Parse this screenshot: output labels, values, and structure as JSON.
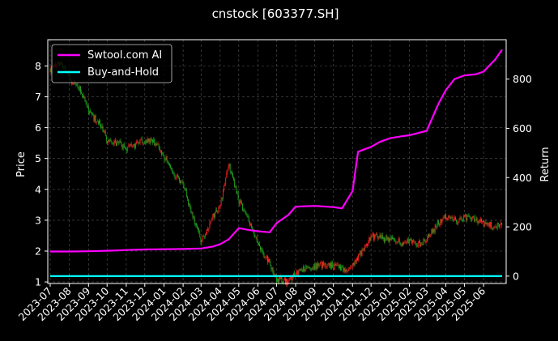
{
  "chart_data": {
    "type": "line",
    "title": "cnstock [603377.SH]",
    "ylabel_left": "Price",
    "ylabel_right": "Return",
    "left_ylim": [
      0.95,
      8.85
    ],
    "right_ylim": [
      -30,
      960
    ],
    "left_ticks": [
      "1",
      "2",
      "3",
      "4",
      "5",
      "6",
      "7",
      "8"
    ],
    "right_ticks": [
      "0",
      "200",
      "400",
      "600",
      "800"
    ],
    "x_ticks": [
      "2023-07",
      "2023-08",
      "2023-09",
      "2023-10",
      "2023-11",
      "2023-12",
      "2024-01",
      "2024-02",
      "2024-03",
      "2024-04",
      "2024-05",
      "2024-06",
      "2024-07",
      "2024-08",
      "2024-09",
      "2024-10",
      "2024-11",
      "2024-12",
      "2025-01",
      "2025-02",
      "2025-03",
      "2025-04",
      "2025-05",
      "2025-06"
    ],
    "grid": true,
    "legend_position": "top-left",
    "legend": [
      {
        "name": "Swtool.com AI",
        "color": "#ff00ff"
      },
      {
        "name": "Buy-and-Hold",
        "color": "#00ffff"
      }
    ],
    "series": [
      {
        "name": "Swtool.com AI",
        "axis": "right",
        "color": "#ff00ff",
        "x": [
          "2023-07",
          "2023-08",
          "2023-09",
          "2023-10",
          "2023-11",
          "2023-12",
          "2024-01",
          "2024-02",
          "2024-03",
          "2024-03-20",
          "2024-04",
          "2024-04-15",
          "2024-05",
          "2024-05-15",
          "2024-06",
          "2024-06-20",
          "2024-07",
          "2024-07-20",
          "2024-08",
          "2024-09",
          "2024-10",
          "2024-10-15",
          "2024-11",
          "2024-11-10",
          "2024-12",
          "2024-12-15",
          "2025-01",
          "2025-01-20",
          "2025-02",
          "2025-03",
          "2025-03-20",
          "2025-04",
          "2025-04-15",
          "2025-05",
          "2025-05-20",
          "2025-06",
          "2025-06-20",
          "2025-07"
        ],
        "values": [
          100,
          100,
          101,
          103,
          106,
          108,
          109,
          110,
          112,
          120,
          130,
          150,
          195,
          188,
          182,
          178,
          215,
          248,
          282,
          285,
          280,
          275,
          345,
          505,
          525,
          545,
          560,
          568,
          572,
          590,
          700,
          755,
          800,
          815,
          820,
          830,
          880,
          920
        ]
      },
      {
        "name": "Buy-and-Hold",
        "axis": "right",
        "color": "#00ffff",
        "x": [
          "2023-07",
          "2025-07"
        ],
        "values": [
          0,
          0
        ]
      },
      {
        "name": "price",
        "axis": "left",
        "x": [
          "2023-07",
          "2023-07-20",
          "2023-08",
          "2023-08-20",
          "2023-09",
          "2023-09-20",
          "2023-10",
          "2023-10-20",
          "2023-11",
          "2023-11-20",
          "2023-12",
          "2023-12-20",
          "2024-01",
          "2024-01-20",
          "2024-02",
          "2024-02-15",
          "2024-03",
          "2024-03-20",
          "2024-04",
          "2024-04-15",
          "2024-05",
          "2024-05-15",
          "2024-06",
          "2024-06-20",
          "2024-07",
          "2024-07-20",
          "2024-08",
          "2024-08-20",
          "2024-09",
          "2024-09-20",
          "2024-10",
          "2024-10-20",
          "2024-11",
          "2024-11-20",
          "2024-12",
          "2024-12-20",
          "2025-01",
          "2025-01-20",
          "2025-02",
          "2025-02-20",
          "2025-03",
          "2025-03-20",
          "2025-04",
          "2025-04-20",
          "2025-05",
          "2025-05-20",
          "2025-06",
          "2025-06-20",
          "2025-07"
        ],
        "values": [
          7.9,
          8.1,
          7.6,
          7.2,
          6.5,
          6.1,
          5.6,
          5.5,
          5.3,
          5.5,
          5.6,
          5.5,
          5.1,
          4.4,
          4.2,
          3.2,
          2.3,
          3.1,
          3.5,
          4.8,
          3.6,
          3.1,
          2.2,
          1.6,
          1.1,
          1.0,
          1.3,
          1.5,
          1.5,
          1.6,
          1.5,
          1.4,
          1.5,
          2.1,
          2.5,
          2.4,
          2.4,
          2.3,
          2.3,
          2.2,
          2.4,
          2.9,
          3.1,
          3.0,
          3.1,
          3.0,
          2.9,
          2.8,
          2.9
        ]
      }
    ]
  }
}
